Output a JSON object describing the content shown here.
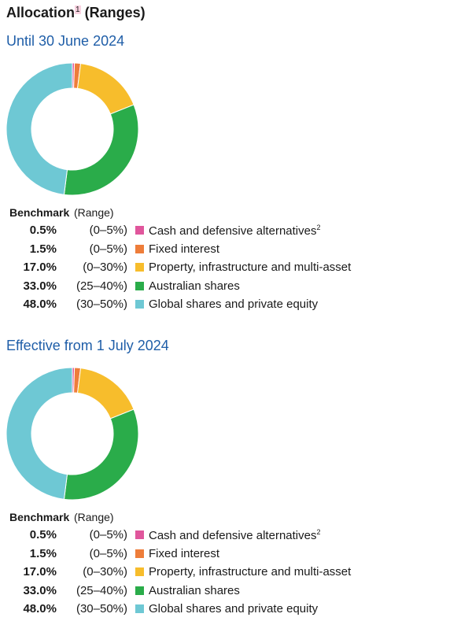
{
  "page": {
    "title": "Allocation",
    "title_sup": "1",
    "title_suffix": "(Ranges)",
    "column_benchmark": "Benchmark",
    "column_range": "(Range)"
  },
  "colors": {
    "cash": "#e0569c",
    "fixed": "#ee7d3a",
    "property": "#f7bd2c",
    "australian": "#2aac4a",
    "global": "#6ec8d4",
    "section_title": "#1f5ea8"
  },
  "chart_data": [
    {
      "type": "pie",
      "subtitle": "Until 30 June 2024",
      "categories": [
        "Cash and defensive alternatives",
        "Fixed interest",
        "Property, infrastructure and multi-asset",
        "Australian shares",
        "Global shares and private equity"
      ],
      "label_sups": [
        "2",
        "",
        "",
        "",
        ""
      ],
      "values": [
        0.5,
        1.5,
        17.0,
        33.0,
        48.0
      ],
      "value_labels": [
        "0.5%",
        "1.5%",
        "17.0%",
        "33.0%",
        "48.0%"
      ],
      "ranges": [
        "(0–5%)",
        "(0–5%)",
        "(0–30%)",
        "(25–40%)",
        "(30–50%)"
      ],
      "colors": [
        "#e0569c",
        "#ee7d3a",
        "#f7bd2c",
        "#2aac4a",
        "#6ec8d4"
      ]
    },
    {
      "type": "pie",
      "subtitle": "Effective from 1 July 2024",
      "categories": [
        "Cash and defensive alternatives",
        "Fixed interest",
        "Property, infrastructure and multi-asset",
        "Australian shares",
        "Global shares and private equity"
      ],
      "label_sups": [
        "2",
        "",
        "",
        "",
        ""
      ],
      "values": [
        0.5,
        1.5,
        17.0,
        33.0,
        48.0
      ],
      "value_labels": [
        "0.5%",
        "1.5%",
        "17.0%",
        "33.0%",
        "48.0%"
      ],
      "ranges": [
        "(0–5%)",
        "(0–5%)",
        "(0–30%)",
        "(25–40%)",
        "(30–50%)"
      ],
      "colors": [
        "#e0569c",
        "#ee7d3a",
        "#f7bd2c",
        "#2aac4a",
        "#6ec8d4"
      ]
    }
  ]
}
